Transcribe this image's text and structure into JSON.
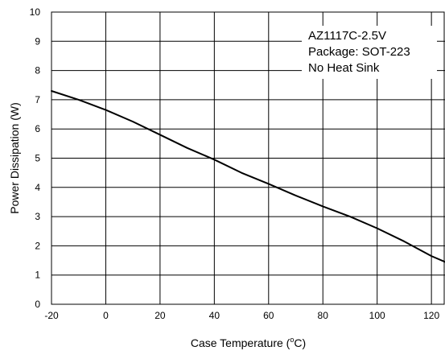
{
  "chart_data": {
    "type": "line",
    "title": "",
    "xlabel": {
      "prefix": "Case Temperature (",
      "superscript": "o",
      "suffix": "C)"
    },
    "ylabel": "Power Dissipation (W)",
    "xlim": [
      -20,
      125
    ],
    "ylim": [
      0,
      10
    ],
    "x_ticks": [
      -20,
      0,
      20,
      40,
      60,
      80,
      100,
      120
    ],
    "y_ticks": [
      0,
      1,
      2,
      3,
      4,
      5,
      6,
      7,
      8,
      9,
      10
    ],
    "grid": true,
    "series": [
      {
        "color": "#000000",
        "x": [
          -20,
          -10,
          0,
          10,
          20,
          30,
          40,
          50,
          60,
          70,
          80,
          90,
          100,
          110,
          120,
          125
        ],
        "y": [
          7.3,
          7.0,
          6.65,
          6.25,
          5.8,
          5.35,
          4.95,
          4.5,
          4.12,
          3.72,
          3.35,
          3.0,
          2.6,
          2.15,
          1.65,
          1.45
        ]
      }
    ],
    "annotation": {
      "position": "top-right",
      "lines": [
        "AZ1117C-2.5V",
        "Package: SOT-223",
        "No Heat Sink"
      ]
    }
  }
}
